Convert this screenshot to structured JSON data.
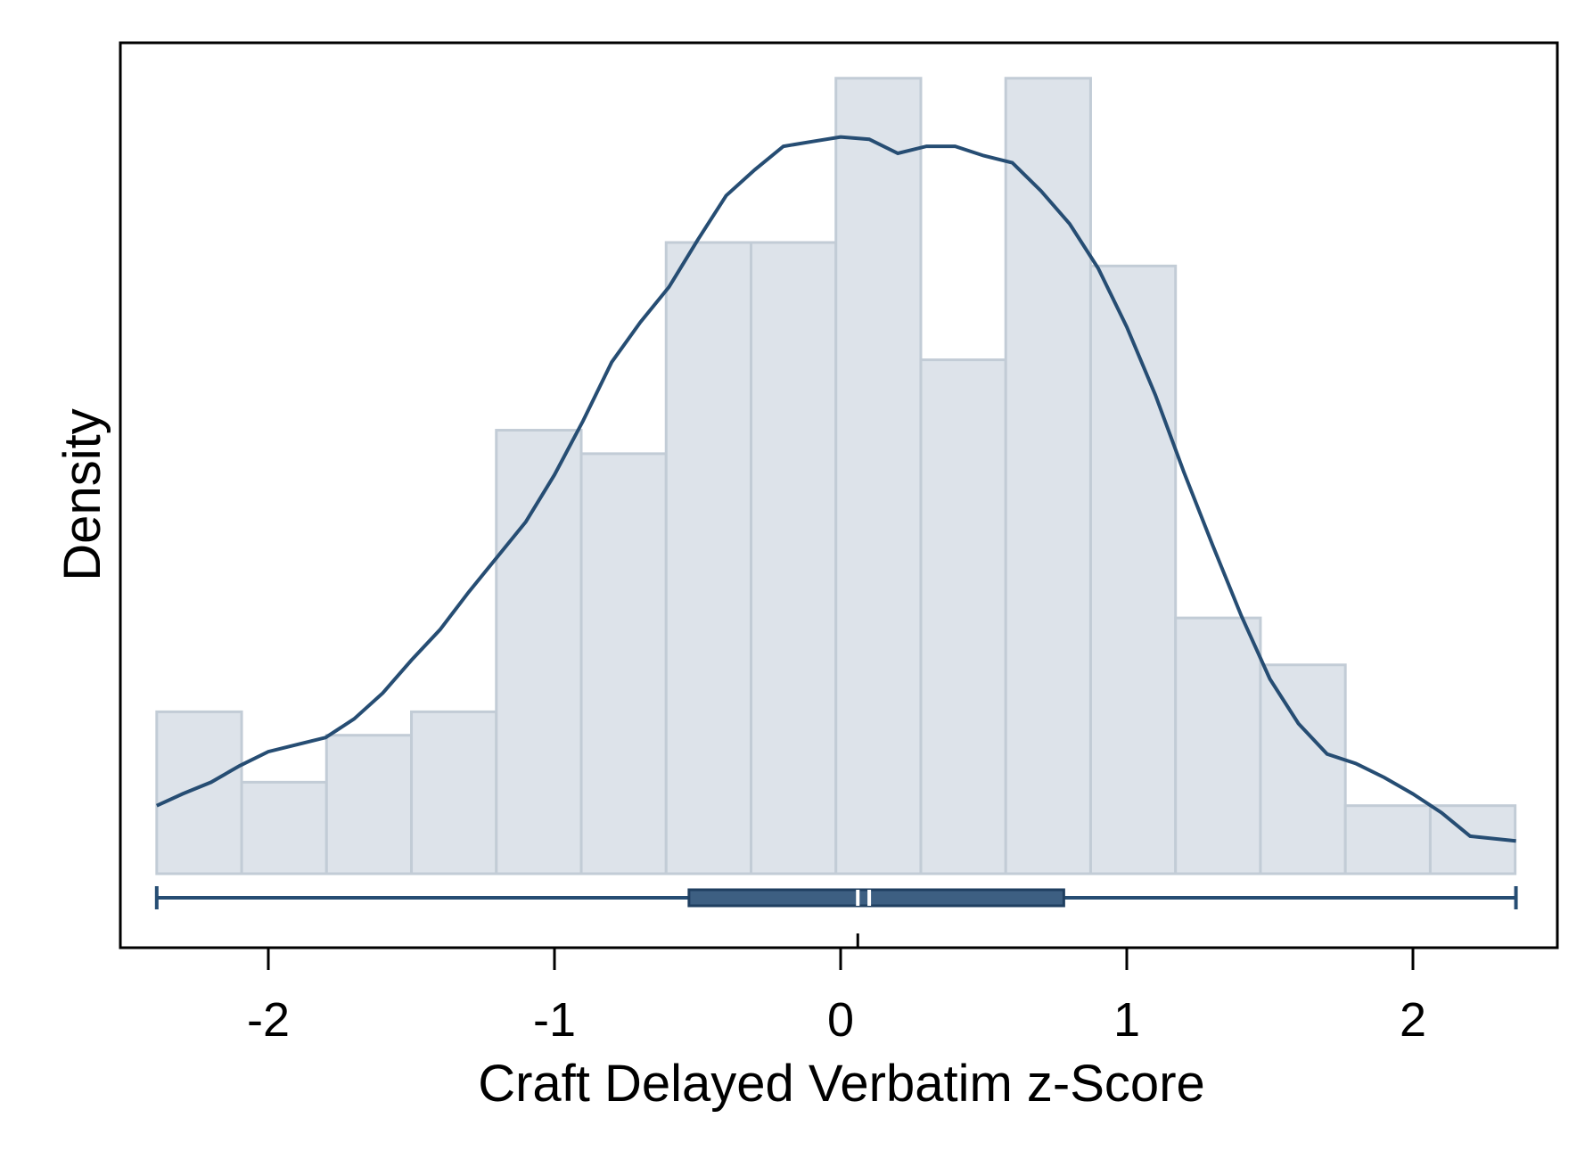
{
  "chart_data": {
    "type": "bar",
    "title": "",
    "xlabel": "Craft Delayed Verbatim z-Score",
    "ylabel": "Density",
    "xlim": [
      -2.8,
      2.5
    ],
    "ylim": [
      0,
      0.38
    ],
    "grid": false,
    "xticks": [
      -2,
      -1,
      0,
      1,
      2
    ],
    "xtick_labels": [
      "-2",
      "-1",
      "0",
      "1",
      "2"
    ],
    "histogram": {
      "bin_start": -2.39,
      "bin_width": 0.2967,
      "densities": [
        0.069,
        0.039,
        0.059,
        0.069,
        0.189,
        0.179,
        0.269,
        0.269,
        0.339,
        0.219,
        0.339,
        0.259,
        0.109,
        0.089,
        0.029,
        0.029
      ]
    },
    "kde": {
      "x": [
        -2.39,
        -2.3,
        -2.2,
        -2.1,
        -2.0,
        -1.9,
        -1.8,
        -1.7,
        -1.6,
        -1.5,
        -1.4,
        -1.3,
        -1.2,
        -1.1,
        -1.0,
        -0.9,
        -0.8,
        -0.7,
        -0.6,
        -0.5,
        -0.4,
        -0.3,
        -0.2,
        -0.1,
        0.0,
        0.1,
        0.2,
        0.3,
        0.4,
        0.5,
        0.6,
        0.7,
        0.8,
        0.9,
        1.0,
        1.1,
        1.2,
        1.3,
        1.4,
        1.5,
        1.6,
        1.7,
        1.8,
        1.9,
        2.0,
        2.1,
        2.2,
        2.36
      ],
      "y": [
        0.029,
        0.034,
        0.039,
        0.046,
        0.052,
        0.055,
        0.058,
        0.066,
        0.077,
        0.091,
        0.104,
        0.12,
        0.135,
        0.15,
        0.17,
        0.193,
        0.218,
        0.235,
        0.25,
        0.27,
        0.289,
        0.3,
        0.31,
        0.312,
        0.314,
        0.313,
        0.307,
        0.31,
        0.31,
        0.306,
        0.303,
        0.291,
        0.277,
        0.258,
        0.233,
        0.204,
        0.171,
        0.14,
        0.11,
        0.083,
        0.064,
        0.051,
        0.047,
        0.041,
        0.034,
        0.026,
        0.016,
        0.014
      ]
    },
    "boxplot": {
      "min": -2.39,
      "q1": -0.53,
      "median": 0.06,
      "mean": 0.1,
      "q3": 0.78,
      "max": 2.36
    }
  }
}
